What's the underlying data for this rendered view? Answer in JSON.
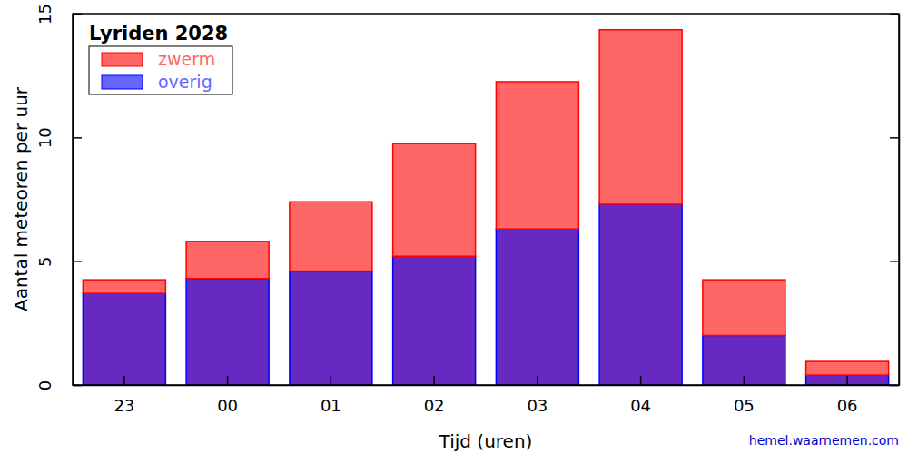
{
  "chart_data": {
    "type": "bar",
    "title": "Lyriden 2028",
    "x_label": "Tijd (uren)",
    "y_label": "Aantal meteoren per uur",
    "credit": "hemel.waarnemen.com",
    "categories": [
      "23",
      "00",
      "01",
      "02",
      "03",
      "04",
      "05",
      "06"
    ],
    "series": [
      {
        "name": "overig",
        "color": "#0000ff",
        "values": [
          3.7,
          4.3,
          4.6,
          5.2,
          6.3,
          7.3,
          2.0,
          0.4
        ]
      },
      {
        "name": "zwerm",
        "color": "#ff0000",
        "values": [
          0.55,
          1.5,
          2.8,
          4.55,
          5.95,
          7.05,
          2.25,
          0.55
        ]
      }
    ],
    "stacked": true,
    "legend": "upper left",
    "ylim": [
      0,
      15
    ],
    "yticks": [
      0,
      5,
      10,
      15
    ]
  }
}
